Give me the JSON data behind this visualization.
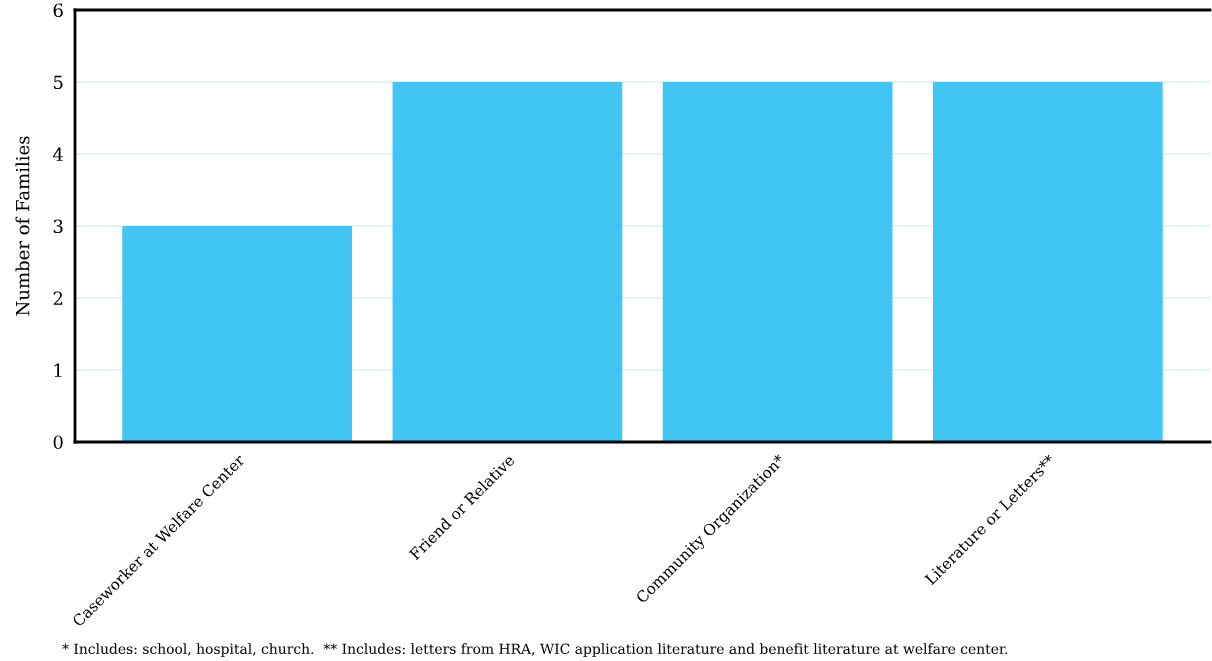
{
  "chart_data": {
    "type": "bar",
    "ylabel": "Number of Families",
    "categories": [
      "Caseworker at Welfare Center",
      "Friend or Relative",
      "Community Organization*",
      "Literature or Letters**"
    ],
    "values": [
      3,
      5,
      5,
      5
    ],
    "color": "#41c5f3",
    "ylim": [
      0,
      6
    ],
    "yticks": [
      0,
      1,
      2,
      3,
      4,
      5,
      6
    ],
    "grid": "y",
    "annotations": [
      "* Includes: school, hospital, church.  ** Includes: letters from HRA, WIC application literature and benefit literature at welfare center."
    ]
  }
}
